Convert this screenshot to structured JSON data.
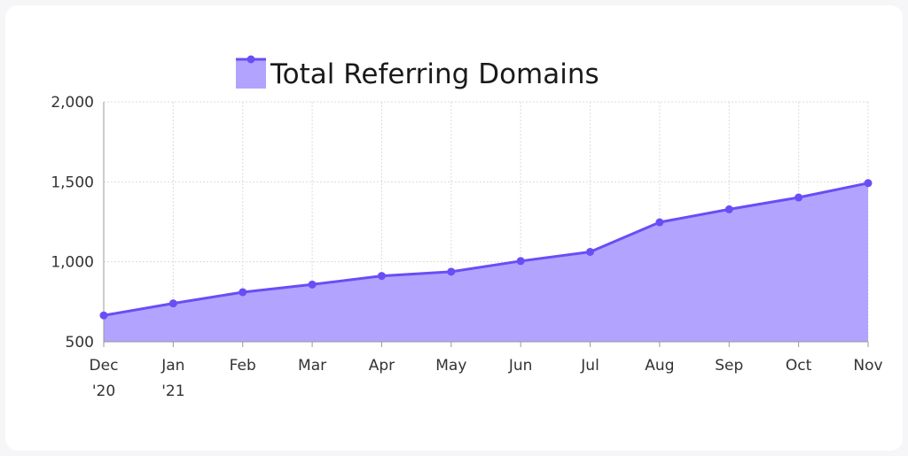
{
  "chart_data": {
    "type": "area",
    "title": "",
    "xlabel": "",
    "ylabel": "",
    "categories": [
      "Dec '20",
      "Jan '21",
      "Feb",
      "Mar",
      "Apr",
      "May",
      "Jun",
      "Jul",
      "Aug",
      "Sep",
      "Oct",
      "Nov"
    ],
    "category_labels": [
      [
        "Dec",
        "'20"
      ],
      [
        "Jan",
        "'21"
      ],
      [
        "Feb"
      ],
      [
        "Mar"
      ],
      [
        "Apr"
      ],
      [
        "May"
      ],
      [
        "Jun"
      ],
      [
        "Jul"
      ],
      [
        "Aug"
      ],
      [
        "Sep"
      ],
      [
        "Oct"
      ],
      [
        "Nov"
      ]
    ],
    "series": [
      {
        "name": "Total Referring Domains",
        "values": [
          665,
          740,
          810,
          858,
          912,
          938,
          1005,
          1062,
          1247,
          1328,
          1402,
          1492
        ]
      }
    ],
    "ylim": [
      500,
      2000
    ],
    "yticks": [
      500,
      1000,
      1500,
      2000
    ],
    "ytick_labels": [
      "500",
      "1,000",
      "1,500",
      "2,000"
    ],
    "grid": true,
    "legend_position": "top-center",
    "colors": {
      "line": "#6a4df5",
      "fill": "#b2a3ff",
      "grid": "#dcdcdc",
      "axis": "#999999"
    }
  }
}
